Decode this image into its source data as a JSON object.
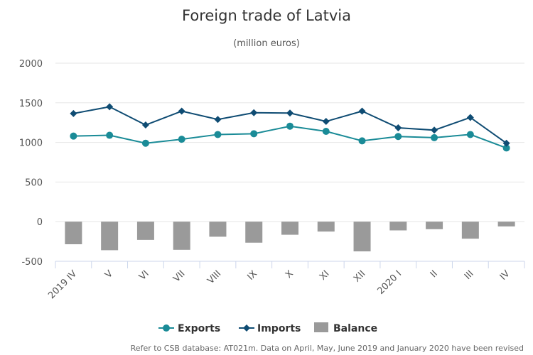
{
  "chart_data": {
    "type": "line+bar",
    "title": "Foreign trade of Latvia",
    "subtitle": "(million euros)",
    "categories": [
      "2019 IV",
      "V",
      "VI",
      "VII",
      "VIII",
      "IX",
      "X",
      "XI",
      "XII",
      "2020 I",
      "II",
      "III",
      "IV"
    ],
    "ylim": [
      -500,
      2000
    ],
    "yticks": [
      -500,
      0,
      500,
      1000,
      1500,
      2000
    ],
    "grid": true,
    "legend_position": "bottom",
    "series": [
      {
        "name": "Exports",
        "type": "line",
        "marker": "circle",
        "color": "#1a8b97",
        "values": [
          1080,
          1090,
          990,
          1040,
          1100,
          1110,
          1205,
          1140,
          1020,
          1075,
          1060,
          1100,
          930
        ]
      },
      {
        "name": "Imports",
        "type": "line",
        "marker": "diamond",
        "color": "#0f4c73",
        "values": [
          1365,
          1450,
          1220,
          1395,
          1290,
          1375,
          1370,
          1265,
          1395,
          1185,
          1155,
          1315,
          990
        ]
      },
      {
        "name": "Balance",
        "type": "bar",
        "color": "#9a9a9a",
        "values": [
          -285,
          -360,
          -230,
          -355,
          -190,
          -265,
          -165,
          -125,
          -375,
          -110,
          -95,
          -215,
          -60
        ]
      }
    ]
  },
  "footnote": "Refer to CSB database: AT021m. Data on April, May, June 2019 and January 2020 have been revised"
}
